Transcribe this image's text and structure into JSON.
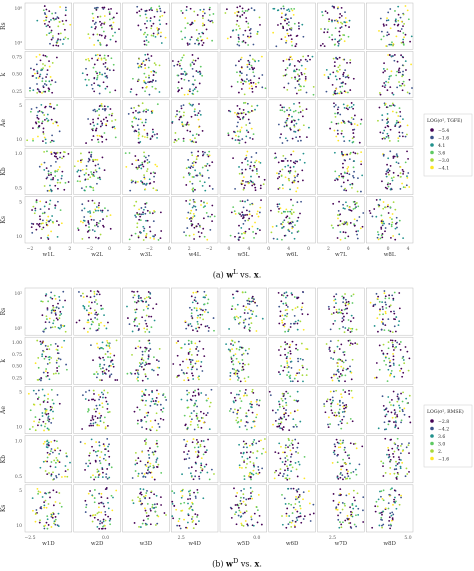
{
  "figures": [
    {
      "id": "a",
      "caption": "(a) w^L vs. x.",
      "caption_parts": {
        "label": "(a)",
        "lhs": "w",
        "sup": "L",
        "mid": " vs. ",
        "rhs": "x",
        "end": "."
      },
      "row_labels": [
        "Rs",
        "k",
        "Ae",
        "Kb",
        "Ks"
      ],
      "col_labels": [
        "w1L",
        "w2L",
        "w3L",
        "w4L",
        "w5L",
        "w6L",
        "w7L",
        "w8L"
      ],
      "x_ticks": [
        "−2",
        "0",
        "2",
        "−2",
        "0",
        "2",
        "−2",
        "0",
        "2",
        "−2",
        "0",
        "4",
        "0",
        "4",
        "0",
        "2",
        "0",
        "4",
        "0",
        "4"
      ],
      "y_ticks": [
        [
          "10⁰",
          "10²"
        ],
        [
          "0.75",
          "0.50",
          "0.25"
        ],
        [
          "5",
          "10"
        ],
        [
          "1.0",
          "0.5"
        ],
        [
          "5",
          "10"
        ]
      ],
      "legend": {
        "title": "LOG(σ², TGFE)",
        "entries": [
          {
            "label": "−5.4",
            "color": "#440154"
          },
          {
            "label": "−1.6",
            "color": "#3b528b"
          },
          {
            "label": "4.1",
            "color": "#21918c"
          },
          {
            "label": "3.6",
            "color": "#5ec962"
          },
          {
            "label": "−3.0",
            "color": "#a6d93a"
          },
          {
            "label": "−4.1",
            "color": "#fde725"
          }
        ]
      }
    },
    {
      "id": "b",
      "caption": "(b) w^D vs. x.",
      "caption_parts": {
        "label": "(b)",
        "lhs": "w",
        "sup": "D",
        "mid": " vs. ",
        "rhs": "x",
        "end": "."
      },
      "row_labels": [
        "Rs",
        "k",
        "Ae",
        "Kb",
        "Ks"
      ],
      "col_labels": [
        "w1D",
        "w2D",
        "w3D",
        "w4D",
        "w5D",
        "w6D",
        "w7D",
        "w8D"
      ],
      "x_ticks": [
        "−2.5",
        "0.0",
        "2.5",
        "0.0",
        "2.5",
        "5.0"
      ],
      "y_ticks": [
        [
          "10²",
          "10⁵"
        ],
        [
          "1.00",
          "0.75",
          "0.50",
          "0.25"
        ],
        [
          "5",
          "10"
        ],
        [
          "1.0",
          "0.5"
        ],
        [
          "5",
          "10"
        ]
      ],
      "legend": {
        "title": "LOG(σ², RMSE)",
        "entries": [
          {
            "label": "−2.8",
            "color": "#440154"
          },
          {
            "label": "−4.2",
            "color": "#3b528b"
          },
          {
            "label": "3.6",
            "color": "#21918c"
          },
          {
            "label": "3.0",
            "color": "#5ec962"
          },
          {
            "label": "2.",
            "color": "#a6d93a"
          },
          {
            "label": "−1.6",
            "color": "#fde725"
          }
        ]
      }
    }
  ]
}
